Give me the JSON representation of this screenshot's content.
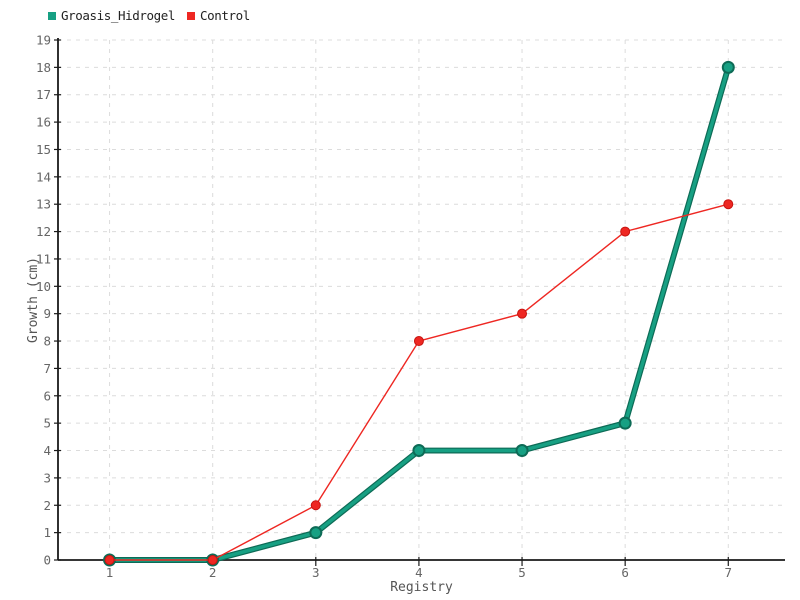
{
  "chart_data": {
    "type": "line",
    "title": "",
    "xlabel": "Registry",
    "ylabel": "Growth (cm)",
    "x": [
      1,
      2,
      3,
      4,
      5,
      6,
      7
    ],
    "x_ticks": [
      1,
      2,
      3,
      4,
      5,
      6,
      7
    ],
    "xlim": [
      0.5,
      7.55
    ],
    "ylim": [
      0,
      19
    ],
    "y_tick_step": 1,
    "grid": true,
    "grid_style": "dashed",
    "legend_position": "top-left",
    "series": [
      {
        "name": "Groasis_Hidrogel",
        "values": [
          0,
          0,
          1,
          4,
          4,
          5,
          18
        ],
        "color": "#17a083",
        "edge_color": "#0d6b56",
        "line_width": 3.5,
        "marker": "circle",
        "marker_radius": 5.5
      },
      {
        "name": "Control",
        "values": [
          0,
          0,
          2,
          8,
          9,
          12,
          13
        ],
        "color": "#ee2722",
        "edge_color": "#c61410",
        "line_width": 1.4,
        "marker": "circle",
        "marker_radius": 4.5
      }
    ]
  },
  "colors": {
    "background": "#ffffff",
    "grid": "#dcdcdc",
    "axis": "#1a1a1a",
    "tick_label": "#666666",
    "axis_title": "#555555",
    "legend_text": "#222222"
  }
}
